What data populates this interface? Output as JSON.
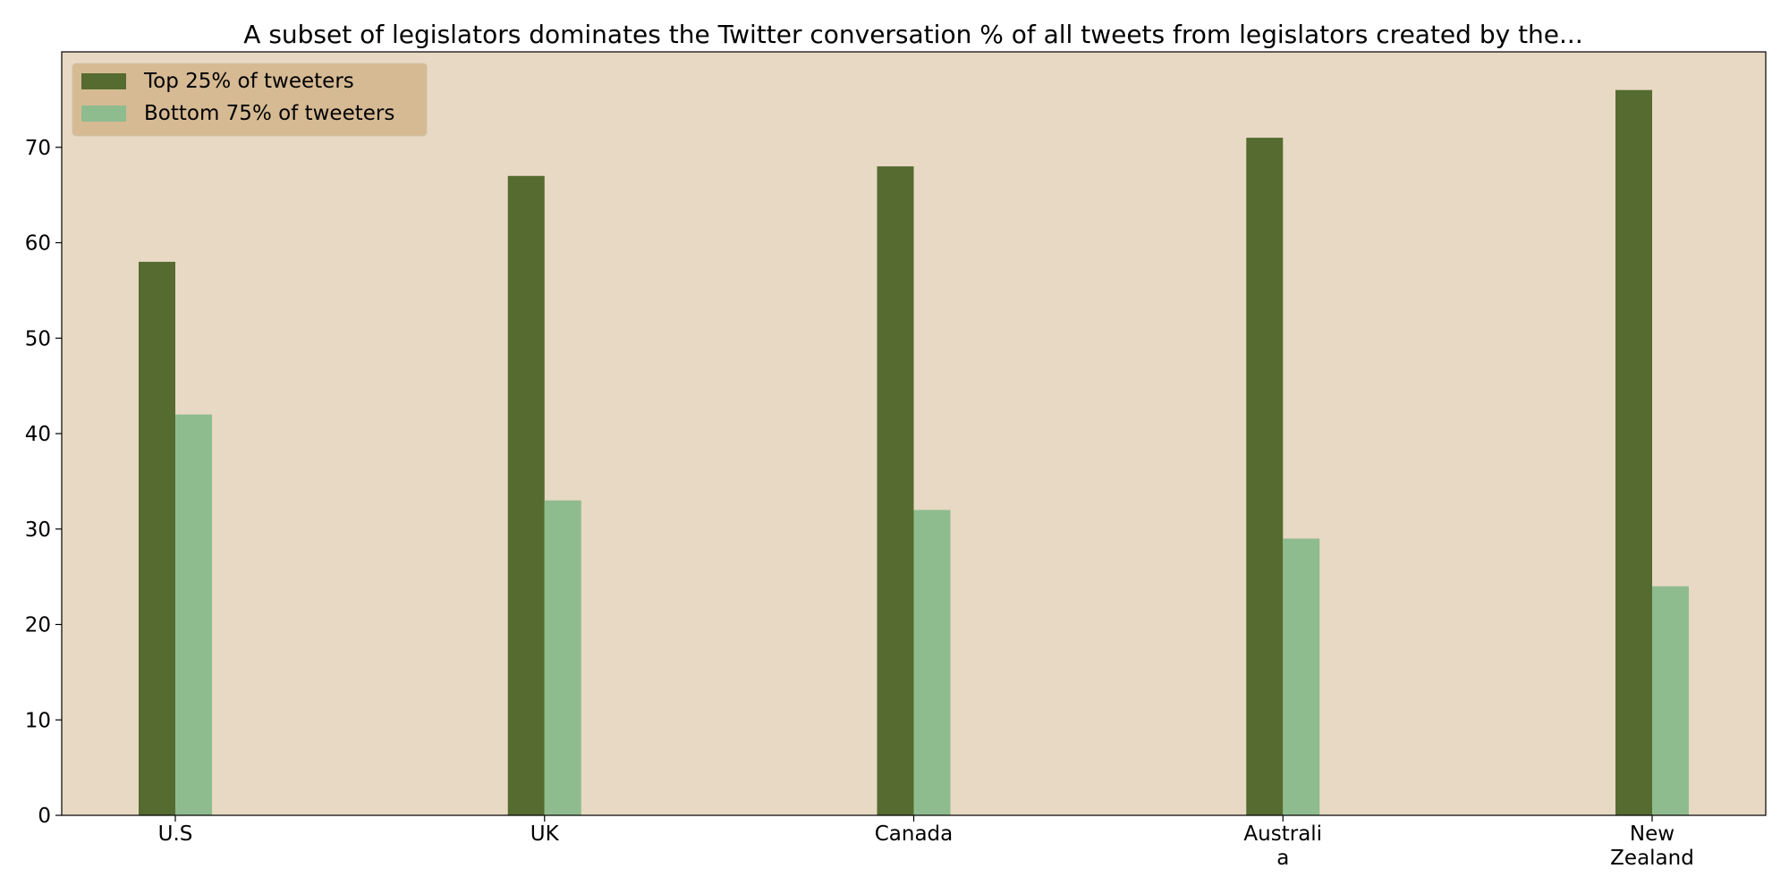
{
  "chart_data": {
    "type": "bar",
    "title": "A subset of legislators dominates the Twitter conversation % of all tweets from legislators created by the...",
    "xlabel": "",
    "ylabel": "",
    "categories": [
      [
        "U.S"
      ],
      [
        "UK"
      ],
      [
        "Canada"
      ],
      [
        "Australi",
        "a"
      ],
      [
        "New",
        "Zealand"
      ]
    ],
    "series": [
      {
        "name": "Top 25% of tweeters",
        "values": [
          58,
          67,
          68,
          71,
          76
        ],
        "color": "#556b2f"
      },
      {
        "name": "Bottom 75% of tweeters",
        "values": [
          42,
          33,
          32,
          29,
          24
        ],
        "color": "#8fbc8f"
      }
    ],
    "ylim": [
      0,
      80
    ],
    "yticks": [
      0,
      10,
      20,
      30,
      40,
      50,
      60,
      70
    ],
    "grid": false,
    "legend": "top-left",
    "plot_background": "#e8d9c4",
    "legend_background": "#d2b48c"
  }
}
